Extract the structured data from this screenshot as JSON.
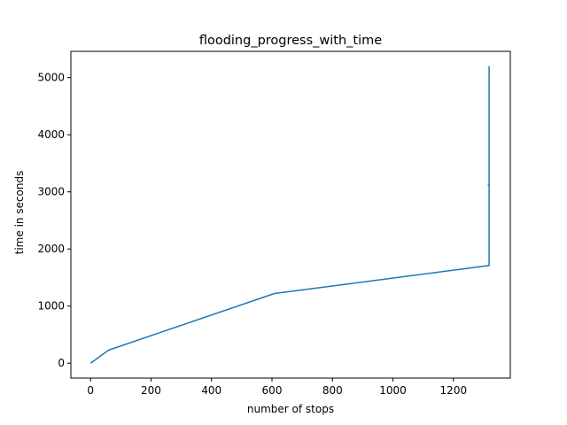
{
  "chart_data": {
    "type": "line",
    "title": "flooding_progress_with_time",
    "xlabel": "number of stops",
    "ylabel": "time in seconds",
    "xlim": [
      -65,
      1388
    ],
    "ylim": [
      -260,
      5460
    ],
    "xticks": [
      0,
      200,
      400,
      600,
      800,
      1000,
      1200
    ],
    "yticks": [
      0,
      1000,
      2000,
      3000,
      4000,
      5000
    ],
    "grid": false,
    "series": [
      {
        "color": "#1f77b4",
        "x": [
          0,
          60,
          608,
          1318,
          1318,
          1315,
          1318,
          1318
        ],
        "y": [
          0,
          230,
          1220,
          1710,
          3120,
          3120,
          3120,
          5200
        ]
      }
    ]
  }
}
